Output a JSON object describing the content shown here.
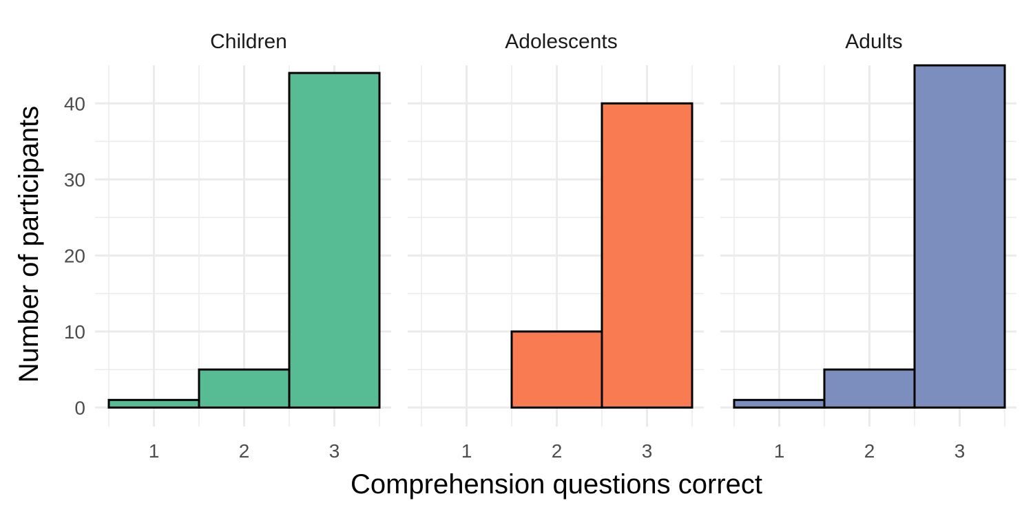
{
  "chart_data": {
    "type": "bar",
    "xlabel": "Comprehension questions correct",
    "ylabel": "Number of participants",
    "categories": [
      "1",
      "2",
      "3"
    ],
    "ylim": [
      -2.5,
      45
    ],
    "yticks": [
      0,
      10,
      20,
      30,
      40
    ],
    "y_tick_labels": [
      "0",
      "10",
      "20",
      "30",
      "40"
    ],
    "grid": true,
    "legend": "none",
    "series": [
      {
        "name": "Children",
        "values": [
          1,
          5,
          44
        ],
        "color": "#57bb94"
      },
      {
        "name": "Adolescents",
        "values": [
          0,
          10,
          40
        ],
        "color": "#f97b51"
      },
      {
        "name": "Adults",
        "values": [
          1,
          5,
          45
        ],
        "color": "#7b8ebd"
      }
    ]
  }
}
